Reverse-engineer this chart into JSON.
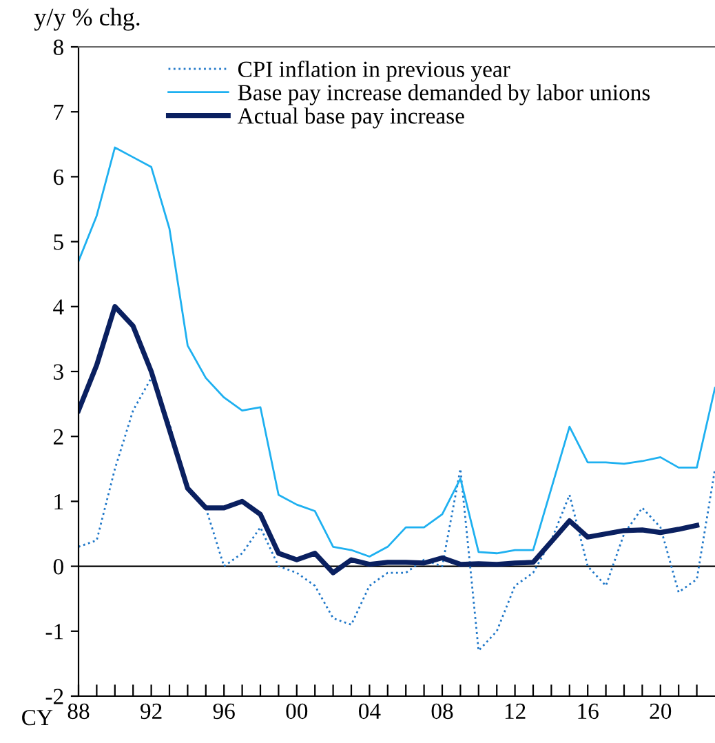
{
  "chart_data": {
    "type": "line",
    "ylabel": "y/y % chg.",
    "annotations": [
      "CY"
    ],
    "x": [
      1988,
      1989,
      1990,
      1991,
      1992,
      1993,
      1994,
      1995,
      1996,
      1997,
      1998,
      1999,
      2000,
      2001,
      2002,
      2003,
      2004,
      2005,
      2006,
      2007,
      2008,
      2009,
      2010,
      2011,
      2012,
      2013,
      2014,
      2015,
      2016,
      2017,
      2018,
      2019,
      2020,
      2021,
      2022,
      2023
    ],
    "series": [
      {
        "name": "CPI inflation in previous year",
        "color": "#1f77c8",
        "line_style": "dotted",
        "values": [
          0.3,
          0.4,
          1.5,
          2.4,
          2.9,
          2.2,
          1.2,
          0.9,
          0.0,
          0.2,
          0.6,
          0.0,
          -0.1,
          -0.3,
          -0.8,
          -0.9,
          -0.3,
          -0.1,
          -0.1,
          0.1,
          0.0,
          1.5,
          -1.3,
          -1.0,
          -0.3,
          -0.1,
          0.4,
          1.1,
          0.0,
          -0.3,
          0.5,
          0.9,
          0.6,
          -0.4,
          -0.2,
          1.5
        ]
      },
      {
        "name": "Base pay increase demanded by labor unions",
        "color": "#1eb0f0",
        "line_style": "solid",
        "values": [
          4.7,
          5.4,
          6.45,
          6.3,
          6.15,
          5.2,
          3.4,
          2.9,
          2.6,
          2.4,
          2.45,
          1.1,
          0.95,
          0.85,
          0.3,
          0.25,
          0.15,
          0.3,
          0.6,
          0.6,
          0.8,
          1.35,
          0.22,
          0.2,
          0.25,
          0.25,
          1.2,
          2.15,
          1.6,
          1.6,
          1.58,
          1.62,
          1.68,
          1.52,
          1.52,
          2.75
        ]
      },
      {
        "name": "Actual base pay increase",
        "color": "#0a2060",
        "line_style": "solid",
        "values": [
          2.4,
          3.1,
          4.0,
          3.7,
          3.0,
          2.1,
          1.2,
          0.9,
          0.9,
          1.0,
          0.8,
          0.2,
          0.1,
          0.2,
          -0.1,
          0.1,
          0.03,
          0.06,
          0.06,
          0.05,
          0.13,
          0.03,
          0.04,
          0.03,
          0.05,
          0.06,
          0.38,
          0.7,
          0.45,
          0.5,
          0.55,
          0.56,
          0.52,
          0.57,
          0.63,
          null
        ]
      }
    ],
    "xlim": [
      1988,
      2023
    ],
    "xticks": [
      {
        "value": 1988,
        "label": "88"
      },
      {
        "value": 1989,
        "label": null
      },
      {
        "value": 1990,
        "label": null
      },
      {
        "value": 1991,
        "label": null
      },
      {
        "value": 1992,
        "label": "92"
      },
      {
        "value": 1993,
        "label": null
      },
      {
        "value": 1994,
        "label": null
      },
      {
        "value": 1995,
        "label": null
      },
      {
        "value": 1996,
        "label": "96"
      },
      {
        "value": 1997,
        "label": null
      },
      {
        "value": 1998,
        "label": null
      },
      {
        "value": 1999,
        "label": null
      },
      {
        "value": 2000,
        "label": "00"
      },
      {
        "value": 2001,
        "label": null
      },
      {
        "value": 2002,
        "label": null
      },
      {
        "value": 2003,
        "label": null
      },
      {
        "value": 2004,
        "label": "04"
      },
      {
        "value": 2005,
        "label": null
      },
      {
        "value": 2006,
        "label": null
      },
      {
        "value": 2007,
        "label": null
      },
      {
        "value": 2008,
        "label": "08"
      },
      {
        "value": 2009,
        "label": null
      },
      {
        "value": 2010,
        "label": null
      },
      {
        "value": 2011,
        "label": null
      },
      {
        "value": 2012,
        "label": "12"
      },
      {
        "value": 2013,
        "label": null
      },
      {
        "value": 2014,
        "label": null
      },
      {
        "value": 2015,
        "label": null
      },
      {
        "value": 2016,
        "label": "16"
      },
      {
        "value": 2017,
        "label": null
      },
      {
        "value": 2018,
        "label": null
      },
      {
        "value": 2019,
        "label": null
      },
      {
        "value": 2020,
        "label": "20"
      },
      {
        "value": 2021,
        "label": null
      },
      {
        "value": 2022,
        "label": null
      }
    ],
    "ylim": [
      -2,
      8
    ],
    "yticks": [
      -2,
      -1,
      0,
      1,
      2,
      3,
      4,
      5,
      6,
      7,
      8
    ],
    "ref_lines": [
      {
        "axis": "y",
        "value": 0,
        "color": "#000000"
      }
    ],
    "grid": false,
    "legend": "top",
    "marker": "none"
  }
}
